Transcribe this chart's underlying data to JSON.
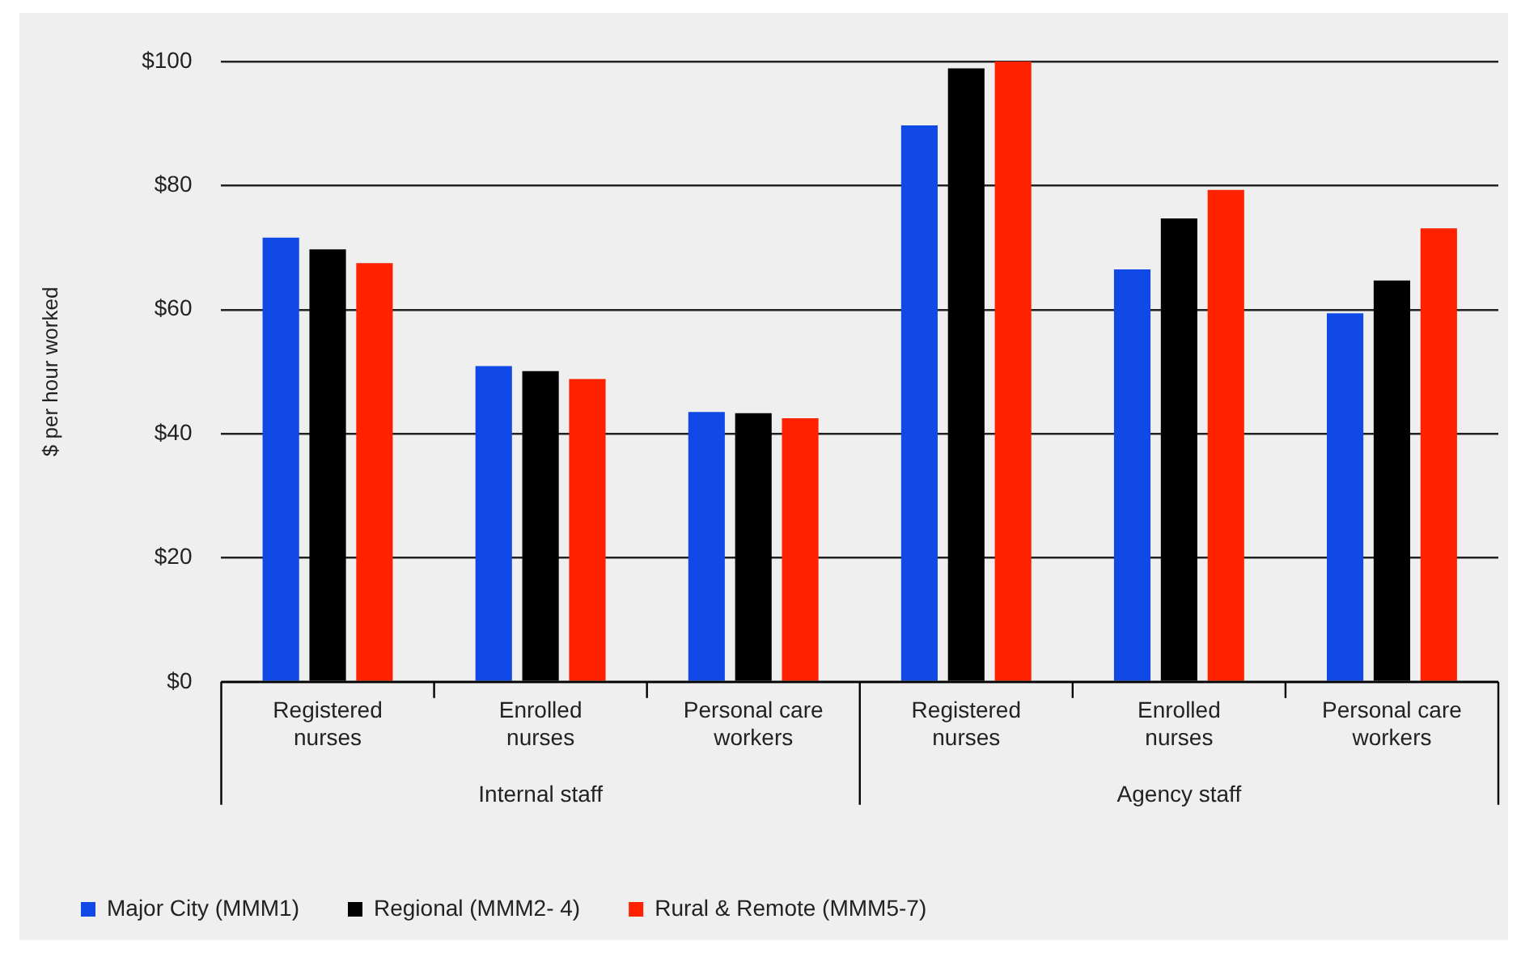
{
  "chart_data": {
    "type": "bar",
    "ylabel": "$ per hour worked",
    "categories": [
      "Registered nurses",
      "Enrolled nurses",
      "Personal care workers",
      "Registered nurses",
      "Enrolled nurses",
      "Personal care workers"
    ],
    "series": [
      {
        "name": "Major City (MMM1)",
        "color": "#1049e6",
        "values": [
          71.6,
          50.9,
          43.5,
          89.7,
          66.5,
          59.4
        ]
      },
      {
        "name": "Regional (MMM2- 4)",
        "color": "#000000",
        "values": [
          69.7,
          50.1,
          43.3,
          98.9,
          74.7,
          64.7
        ]
      },
      {
        "name": "Rural & Remote (MMM5-7)",
        "color": "#ff2200",
        "values": [
          67.5,
          48.8,
          42.5,
          100,
          79.3,
          73.1
        ]
      }
    ],
    "annotations": [
      "Internal staff",
      "Agency staff"
    ],
    "ylim": [
      0,
      100
    ],
    "yticks": [
      {
        "value": 0,
        "label": "$0"
      },
      {
        "value": 20,
        "label": "$20"
      },
      {
        "value": 40,
        "label": "$40"
      },
      {
        "value": 60,
        "label": "$60"
      },
      {
        "value": 80,
        "label": "$80"
      },
      {
        "value": 100,
        "label": "$100"
      }
    ],
    "grid": "y",
    "legend": "bottom left"
  }
}
